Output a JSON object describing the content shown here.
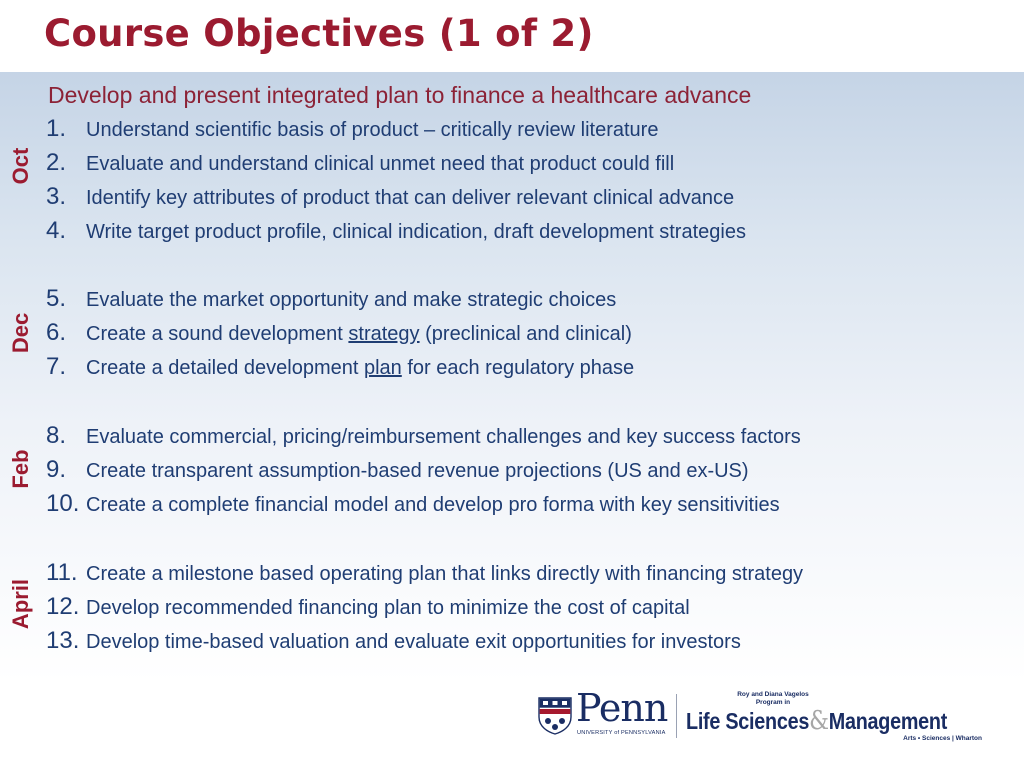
{
  "slide": {
    "title": "Course Objectives (1 of 2)",
    "subtitle": "Develop and present integrated plan to finance a healthcare advance"
  },
  "months": [
    "Oct",
    "Dec",
    "Feb",
    "April"
  ],
  "objectives": [
    {
      "num": "1.",
      "text": "Understand scientific basis of product – critically review literature"
    },
    {
      "num": "2.",
      "text": "Evaluate and understand clinical unmet need that product could fill"
    },
    {
      "num": "3.",
      "text": "Identify key attributes of product that can deliver relevant clinical advance"
    },
    {
      "num": "4.",
      "text": "Write target product profile, clinical indication, draft development strategies"
    },
    {
      "num": "5.",
      "text": "Evaluate the market opportunity and make strategic choices"
    },
    {
      "num": "6.",
      "pre": "Create a sound development ",
      "link": "strategy",
      "post": " (preclinical and clinical)"
    },
    {
      "num": "7.",
      "pre": "Create a detailed development ",
      "link": "plan",
      "post": " for each regulatory phase"
    },
    {
      "num": "8.",
      "text": "Evaluate commercial, pricing/reimbursement challenges and key success factors"
    },
    {
      "num": "9.",
      "text": "Create transparent assumption-based revenue projections (US and ex-US)"
    },
    {
      "num": "10.",
      "text": "Create a complete financial model and develop pro forma with key sensitivities"
    },
    {
      "num": "11.",
      "text": "Create a milestone based operating plan that links directly with financing strategy"
    },
    {
      "num": "12.",
      "text": "Develop recommended financing plan to minimize the cost of capital"
    },
    {
      "num": "13.",
      "text": "Develop time-based valuation and evaluate exit opportunities for investors"
    }
  ],
  "logos": {
    "penn": {
      "word": "Penn",
      "sub": "UNIVERSITY of PENNSYLVANIA"
    },
    "program": {
      "top": "Roy and Diana Vagelos Program in",
      "main_left": "Life Sciences",
      "amp": "&",
      "main_right": "Management",
      "bottom": "Arts • Sciences | Wharton"
    }
  },
  "colors": {
    "title": "#9b1b30",
    "body_text": "#1f3d73",
    "subtitle": "#8c2236",
    "band_top": "#c5d4e6",
    "logo_navy": "#1a2d63"
  }
}
